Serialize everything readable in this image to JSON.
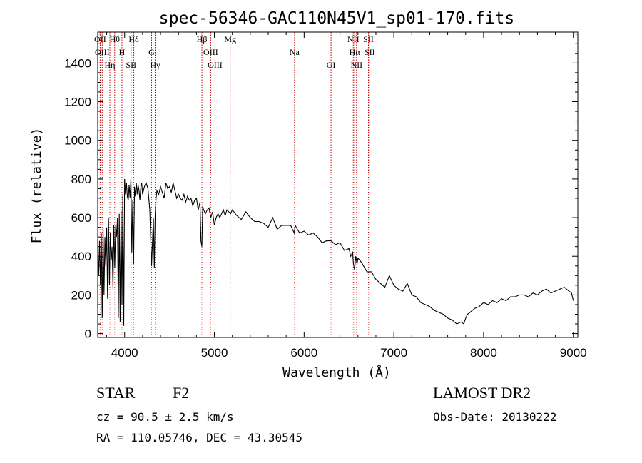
{
  "chart_data": {
    "type": "line",
    "title": "spec-56346-GAC110N45V1_sp01-170.fits",
    "xlabel": "Wavelength (Å)",
    "ylabel": "Flux (relative)",
    "xlim": [
      3700,
      9050
    ],
    "ylim": [
      -20,
      1560
    ],
    "xticks": [
      4000,
      5000,
      6000,
      7000,
      8000,
      9000
    ],
    "yticks": [
      0,
      200,
      400,
      600,
      800,
      1000,
      1200,
      1400
    ],
    "grid": false,
    "line_color": "#000000",
    "marker_color": "#cc0000",
    "series": [
      {
        "x": [
          3700,
          3710,
          3720,
          3730,
          3740,
          3750,
          3760,
          3770,
          3780,
          3790,
          3800,
          3810,
          3820,
          3830,
          3840,
          3850,
          3860,
          3870,
          3880,
          3890,
          3900,
          3910,
          3920,
          3930,
          3940,
          3950,
          3960,
          3970,
          3980,
          3990,
          4000,
          4010,
          4020,
          4030,
          4040,
          4050,
          4060,
          4070,
          4080,
          4090,
          4100,
          4110,
          4120,
          4130,
          4140,
          4150,
          4160,
          4170,
          4180,
          4190,
          4200,
          4220,
          4240,
          4260,
          4280,
          4300,
          4320,
          4330,
          4340,
          4350,
          4360,
          4380,
          4400,
          4420,
          4440,
          4460,
          4480,
          4500,
          4520,
          4540,
          4560,
          4580,
          4600,
          4620,
          4640,
          4660,
          4680,
          4700,
          4720,
          4740,
          4760,
          4780,
          4800,
          4820,
          4840,
          4850,
          4861,
          4870,
          4880,
          4900,
          4920,
          4940,
          4960,
          4980,
          5000,
          5020,
          5040,
          5060,
          5080,
          5100,
          5120,
          5140,
          5160,
          5180,
          5200,
          5250,
          5300,
          5350,
          5400,
          5450,
          5500,
          5550,
          5600,
          5650,
          5700,
          5750,
          5800,
          5850,
          5890,
          5900,
          5950,
          6000,
          6050,
          6100,
          6150,
          6200,
          6250,
          6300,
          6350,
          6400,
          6450,
          6500,
          6520,
          6540,
          6550,
          6563,
          6575,
          6590,
          6600,
          6620,
          6650,
          6700,
          6750,
          6800,
          6850,
          6900,
          6950,
          7000,
          7050,
          7100,
          7150,
          7200,
          7250,
          7300,
          7350,
          7400,
          7450,
          7500,
          7550,
          7600,
          7650,
          7700,
          7750,
          7780,
          7800,
          7820,
          7850,
          7900,
          7950,
          8000,
          8050,
          8100,
          8150,
          8200,
          8250,
          8300,
          8350,
          8400,
          8450,
          8500,
          8550,
          8600,
          8650,
          8700,
          8750,
          8800,
          8850,
          8900,
          8950,
          8980,
          9000
        ],
        "y": [
          450,
          300,
          480,
          250,
          520,
          80,
          550,
          200,
          500,
          350,
          550,
          180,
          600,
          250,
          520,
          380,
          450,
          230,
          560,
          340,
          560,
          500,
          600,
          80,
          620,
          60,
          640,
          150,
          720,
          40,
          800,
          720,
          780,
          710,
          690,
          770,
          700,
          800,
          420,
          690,
          360,
          760,
          710,
          780,
          720,
          770,
          740,
          690,
          760,
          780,
          720,
          760,
          780,
          750,
          640,
          350,
          600,
          340,
          610,
          700,
          740,
          720,
          760,
          730,
          700,
          780,
          750,
          760,
          730,
          780,
          740,
          700,
          720,
          700,
          690,
          720,
          680,
          710,
          690,
          700,
          660,
          690,
          700,
          640,
          680,
          480,
          450,
          660,
          640,
          620,
          640,
          650,
          600,
          630,
          560,
          600,
          620,
          600,
          620,
          640,
          610,
          640,
          630,
          620,
          640,
          610,
          590,
          630,
          600,
          580,
          580,
          570,
          550,
          600,
          540,
          560,
          560,
          560,
          520,
          560,
          520,
          530,
          510,
          520,
          500,
          470,
          480,
          480,
          460,
          470,
          430,
          440,
          400,
          420,
          360,
          330,
          400,
          360,
          390,
          380,
          360,
          320,
          320,
          280,
          260,
          240,
          300,
          250,
          230,
          220,
          260,
          200,
          190,
          160,
          150,
          140,
          120,
          110,
          100,
          80,
          70,
          50,
          60,
          50,
          80,
          100,
          110,
          130,
          140,
          160,
          150,
          170,
          160,
          180,
          170,
          190,
          190,
          200,
          200,
          190,
          210,
          200,
          220,
          230,
          210,
          220,
          230,
          240,
          220,
          210,
          170
        ]
      }
    ],
    "line_markers": [
      {
        "wl": 3727,
        "label": "OII"
      },
      {
        "wl": 3750,
        "label": "OIII"
      },
      {
        "wl": 3835,
        "label": "Hη"
      },
      {
        "wl": 3889,
        "label": "Hθ"
      },
      {
        "wl": 3970,
        "label": "H"
      },
      {
        "wl": 4072,
        "label": "SII"
      },
      {
        "wl": 4102,
        "label": "Hδ"
      },
      {
        "wl": 4300,
        "label": "G"
      },
      {
        "wl": 4340,
        "label": "Hγ"
      },
      {
        "wl": 4861,
        "label": "Hβ"
      },
      {
        "wl": 4959,
        "label": "OIII"
      },
      {
        "wl": 5007,
        "label": "OIII"
      },
      {
        "wl": 5176,
        "label": "Mg"
      },
      {
        "wl": 5893,
        "label": "Na"
      },
      {
        "wl": 6300,
        "label": "OI"
      },
      {
        "wl": 6548,
        "label": "NII"
      },
      {
        "wl": 6563,
        "label": "Hα"
      },
      {
        "wl": 6584,
        "label": "NII"
      },
      {
        "wl": 6717,
        "label": "SII"
      },
      {
        "wl": 6731,
        "label": "SII"
      }
    ]
  },
  "info": {
    "class_label": "STAR",
    "subclass": "F2",
    "cz": "cz = 90.5 ± 2.5 km/s",
    "coords": "RA = 110.05746, DEC =  43.30545",
    "survey": "LAMOST DR2",
    "obs_date": "Obs-Date: 20130222"
  }
}
